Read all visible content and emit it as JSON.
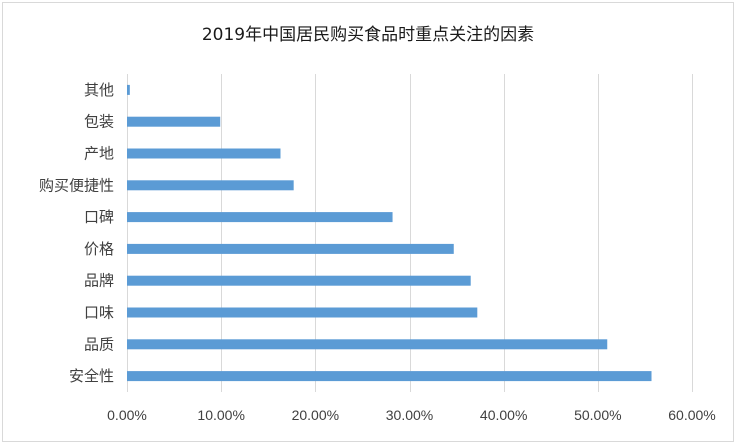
{
  "chart_data": {
    "type": "bar",
    "orientation": "horizontal",
    "title": "2019年中国居民购买食品时重点关注的因素",
    "xlabel": "",
    "ylabel": "",
    "categories": [
      "安全性",
      "品质",
      "口味",
      "品牌",
      "价格",
      "口碑",
      "购买便捷性",
      "产地",
      "包装",
      "其他"
    ],
    "values": [
      55.7,
      51.0,
      37.2,
      36.5,
      34.7,
      28.2,
      17.7,
      16.3,
      9.9,
      0.3
    ],
    "value_unit": "%",
    "xlim": [
      0,
      60
    ],
    "x_ticks": [
      "0.00%",
      "10.00%",
      "20.00%",
      "30.00%",
      "40.00%",
      "50.00%",
      "60.00%"
    ],
    "grid": true,
    "legend": "none",
    "bar_color": "#5b9bd5",
    "grid_color": "#d9d9d9"
  }
}
